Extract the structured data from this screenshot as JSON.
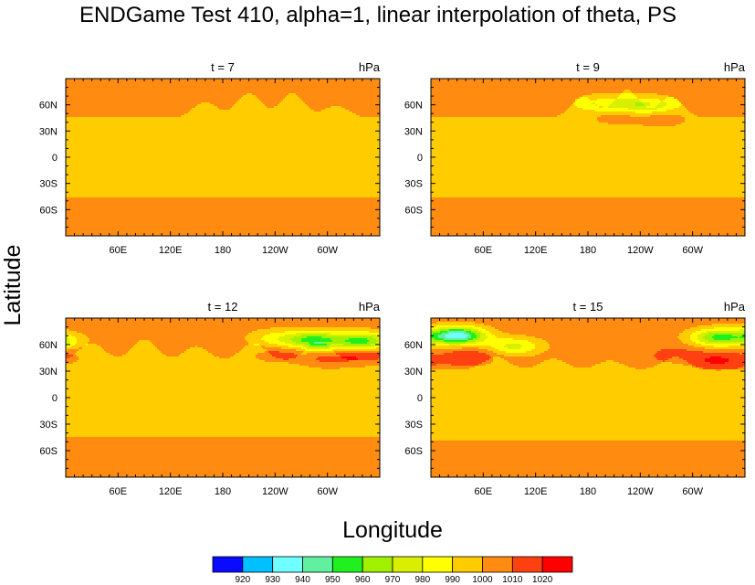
{
  "chart_data": {
    "type": "heatmap",
    "title": "ENDGame Test 410, alpha=1, linear interpolation of theta, PS",
    "xlabel": "Longitude",
    "ylabel": "Latitude",
    "units": "hPa",
    "x_ticks": [
      "60E",
      "120E",
      "180",
      "120W",
      "60W"
    ],
    "y_ticks": [
      "60N",
      "30N",
      "0",
      "30S",
      "60S"
    ],
    "xlim": [
      0,
      360
    ],
    "ylim": [
      -90,
      90
    ],
    "colorbar": {
      "levels": [
        "920",
        "930",
        "940",
        "950",
        "960",
        "970",
        "980",
        "990",
        "1000",
        "1010",
        "1020"
      ],
      "colors": [
        "#0a0aff",
        "#00c0ff",
        "#70ffff",
        "#60f0a0",
        "#20f020",
        "#a0f000",
        "#d8f000",
        "#ffff00",
        "#ffcc00",
        "#ff8c10",
        "#ff4010",
        "#ff0000"
      ]
    },
    "panels": [
      {
        "time_label": "t = 7",
        "units": "hPa",
        "base_north": 1005,
        "base_mid": 995,
        "base_south": 1005,
        "front_lat_north": 45,
        "front_lat_south": -45,
        "waves": [
          {
            "lon": 160,
            "amp": 18
          },
          {
            "lon": 210,
            "amp": 28
          },
          {
            "lon": 260,
            "amp": 28
          },
          {
            "lon": 310,
            "amp": 14
          }
        ],
        "anomalies": []
      },
      {
        "time_label": "t = 9",
        "units": "hPa",
        "base_north": 1005,
        "base_mid": 995,
        "base_south": 1005,
        "front_lat_north": 45,
        "front_lat_south": -45,
        "waves": [
          {
            "lon": 175,
            "amp": 24
          },
          {
            "lon": 225,
            "amp": 32
          },
          {
            "lon": 275,
            "amp": 24
          }
        ],
        "anomalies": [
          {
            "lon": 200,
            "lat": 62,
            "value": 984
          },
          {
            "lon": 248,
            "lat": 60,
            "value": 978
          },
          {
            "lon": 210,
            "lat": 46,
            "value": 1012
          },
          {
            "lon": 265,
            "lat": 44,
            "value": 1014
          }
        ]
      },
      {
        "time_label": "t = 12",
        "units": "hPa",
        "base_north": 1005,
        "base_mid": 995,
        "base_south": 1005,
        "front_lat_north": 42,
        "front_lat_south": -45,
        "waves": [
          {
            "lon": 30,
            "amp": 20
          },
          {
            "lon": 90,
            "amp": 24
          },
          {
            "lon": 150,
            "amp": 16
          },
          {
            "lon": 215,
            "amp": 20
          },
          {
            "lon": 290,
            "amp": 22
          }
        ],
        "anomalies": [
          {
            "lon": 285,
            "lat": 65,
            "value": 955
          },
          {
            "lon": 340,
            "lat": 64,
            "value": 955
          },
          {
            "lon": 240,
            "lat": 67,
            "value": 985
          },
          {
            "lon": 240,
            "lat": 48,
            "value": 1012
          },
          {
            "lon": 300,
            "lat": 44,
            "value": 1020
          },
          {
            "lon": 345,
            "lat": 46,
            "value": 1016
          }
        ]
      },
      {
        "time_label": "t = 15",
        "units": "hPa",
        "base_north": 1005,
        "base_mid": 995,
        "base_south": 1005,
        "front_lat_north": 32,
        "front_lat_south": -48,
        "waves": [
          {
            "lon": 75,
            "amp": 14
          },
          {
            "lon": 140,
            "amp": 12
          },
          {
            "lon": 205,
            "amp": 10
          },
          {
            "lon": 280,
            "amp": 14
          }
        ],
        "anomalies": [
          {
            "lon": 30,
            "lat": 70,
            "value": 930
          },
          {
            "lon": 95,
            "lat": 58,
            "value": 975
          },
          {
            "lon": 330,
            "lat": 68,
            "value": 955
          },
          {
            "lon": 45,
            "lat": 46,
            "value": 1018
          },
          {
            "lon": 330,
            "lat": 42,
            "value": 1020
          },
          {
            "lon": 280,
            "lat": 48,
            "value": 1012
          }
        ]
      }
    ]
  }
}
